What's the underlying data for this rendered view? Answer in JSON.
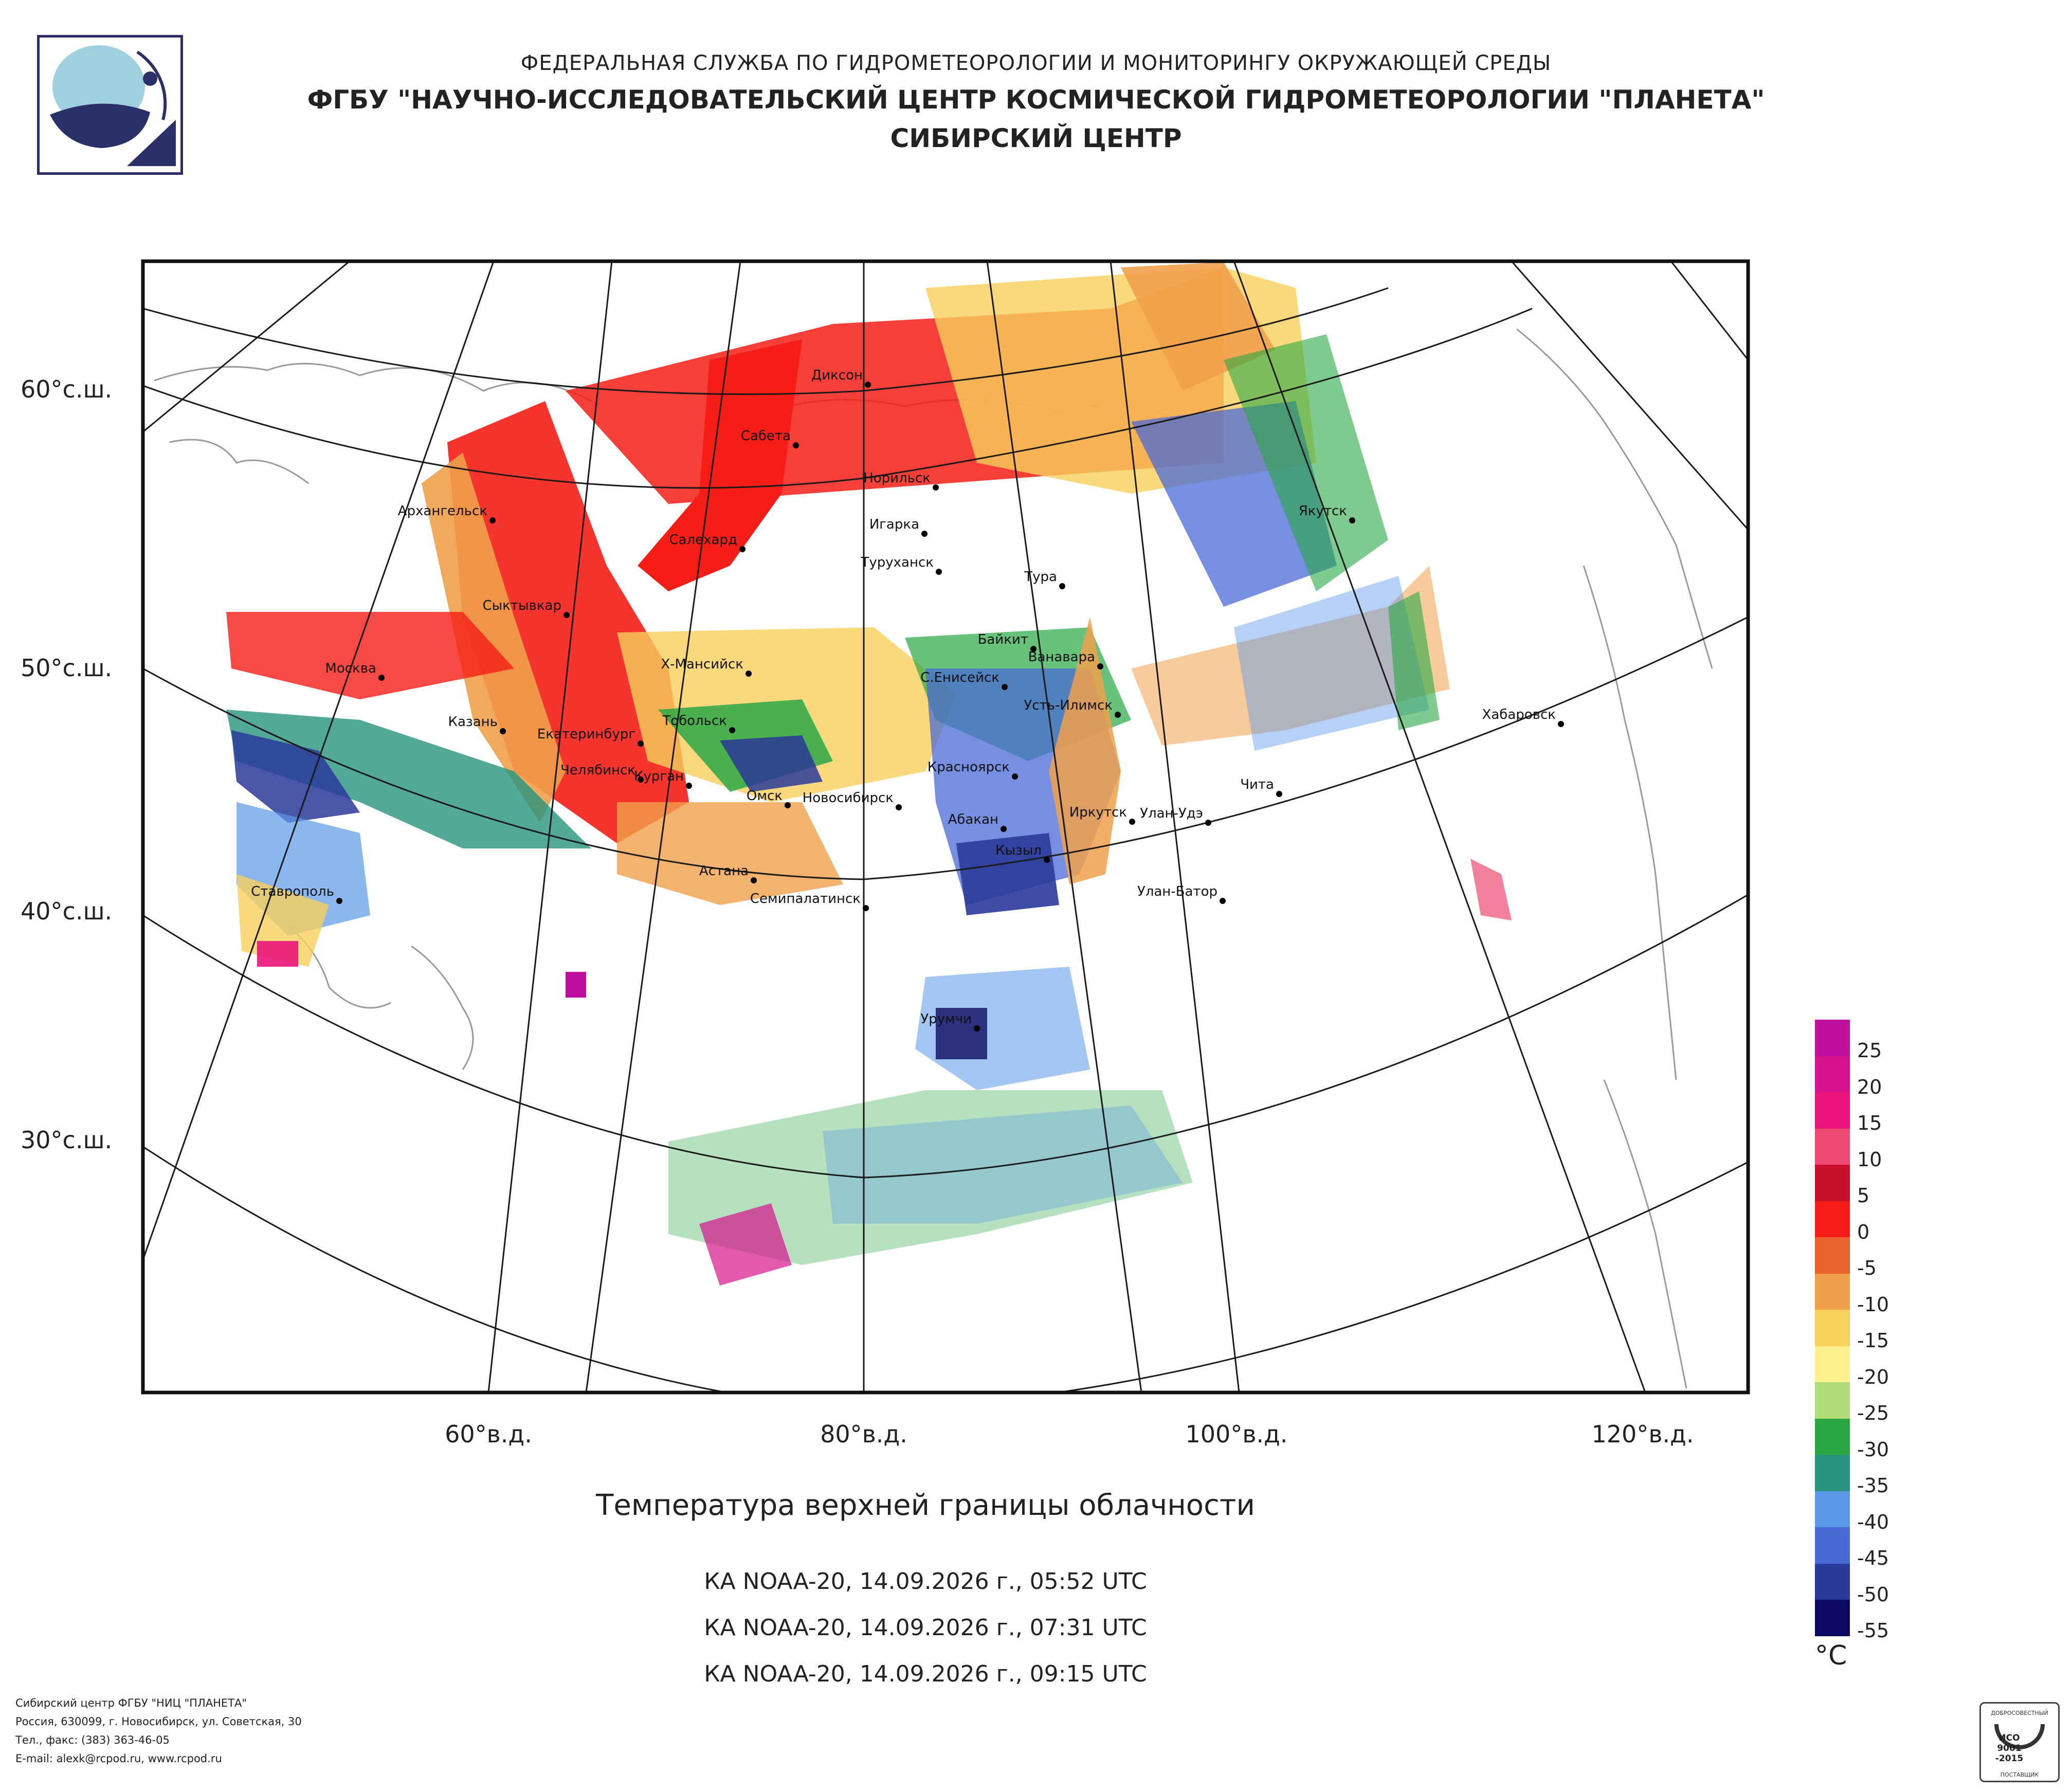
{
  "header": {
    "line1": "ФЕДЕРАЛЬНАЯ СЛУЖБА ПО ГИДРОМЕТЕОРОЛОГИИ И МОНИТОРИНГУ ОКРУЖАЮЩЕЙ СРЕДЫ",
    "line2": "ФГБУ \"НАУЧНО-ИССЛЕДОВАТЕЛЬСКИЙ ЦЕНТР КОСМИЧЕСКОЙ ГИДРОМЕТЕОРОЛОГИИ \"ПЛАНЕТА\"",
    "line3": "СИБИРСКИЙ ЦЕНТР"
  },
  "map": {
    "lat_labels": [
      "60°с.ш.",
      "50°с.ш.",
      "40°с.ш.",
      "30°с.ш."
    ],
    "lon_labels": [
      "60°в.д.",
      "80°в.д.",
      "100°в.д.",
      "120°в.д."
    ],
    "cities": [
      "Диксон",
      "Сабета",
      "Норильск",
      "Игарка",
      "Туруханск",
      "Тура",
      "Якутск",
      "Архангельск",
      "Салехард",
      "Сыктывкар",
      "Байкит",
      "Ванавара",
      "Москва",
      "Х-Мансийск",
      "С.Енисейск",
      "Усть-Илимск",
      "Хабаровск",
      "Казань",
      "Екатеринбург",
      "Тобольск",
      "Челябинск",
      "Курган",
      "Омск",
      "Новосибирск",
      "Красноярск",
      "Абакан",
      "Иркутск",
      "Улан-Удэ",
      "Чита",
      "Кызыл",
      "Астана",
      "Семипалатинск",
      "Улан-Батор",
      "Ставрополь",
      "Урумчи"
    ]
  },
  "product": {
    "title": "Температура верхней границы облачности",
    "passes": [
      "КА NOAA-20, 14.09.2026 г., 05:52 UTC",
      "КА NOAA-20, 14.09.2026 г., 07:31 UTC",
      "КА NOAA-20, 14.09.2026 г., 09:15 UTC"
    ]
  },
  "colorbar": {
    "unit": "°C",
    "labels": [
      "25",
      "20",
      "15",
      "10",
      "5",
      "0",
      "-5",
      "-10",
      "-15",
      "-20",
      "-25",
      "-30",
      "-35",
      "-40",
      "-45",
      "-50",
      "-55"
    ],
    "colors": [
      "#bf0f9f",
      "#d6128c",
      "#ea147a",
      "#ee4a72",
      "#c8102a",
      "#f51d16",
      "#e8622c",
      "#f0a04a",
      "#f8d05a",
      "#fbf08c",
      "#b0dc7a",
      "#2aa845",
      "#27947e",
      "#5a98e8",
      "#4a6ad6",
      "#2a3a9a",
      "#0c0a62"
    ]
  },
  "footer": {
    "line1": "Сибирский центр ФГБУ \"НИЦ \"ПЛАНЕТА\"",
    "line2": "Россия, 630099, г. Новосибирск, ул. Советская, 30",
    "line3": "Тел., факс: (383) 363-46-05",
    "line4": "E-mail: alexk@rcpod.ru, www.rcpod.ru"
  },
  "iso_badge": {
    "text_top": "ДОБРОСОВЕСТНЫЙ",
    "text_mid1": "ИСО",
    "text_mid2": "9001",
    "text_mid3": "-2015",
    "text_bot": "ПОСТАВЩИК"
  }
}
